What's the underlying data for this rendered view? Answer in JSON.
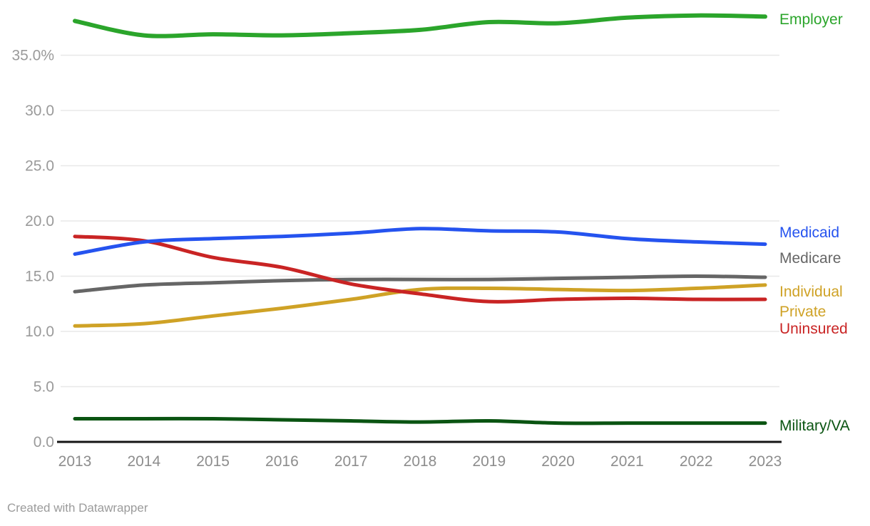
{
  "footer": {
    "credit": "Created with Datawrapper"
  },
  "chart_data": {
    "type": "line",
    "title": "",
    "xlabel": "",
    "ylabel": "",
    "x": [
      "2013",
      "2014",
      "2015",
      "2016",
      "2017",
      "2018",
      "2019",
      "2020",
      "2021",
      "2022",
      "2023"
    ],
    "ylim": [
      0,
      40
    ],
    "grid": true,
    "legend_position": "right-inline-labels",
    "axis_colors": {
      "grid": "#e8e8e8",
      "baseline": "#151515",
      "tick_text": "#9a9a9a"
    },
    "y_ticks": [
      {
        "value": 35,
        "label": "35.0%"
      },
      {
        "value": 30,
        "label": "30.0"
      },
      {
        "value": 25,
        "label": "25.0"
      },
      {
        "value": 20,
        "label": "20.0"
      },
      {
        "value": 15,
        "label": "15.0"
      },
      {
        "value": 10,
        "label": "10.0"
      },
      {
        "value": 5,
        "label": "5.0"
      },
      {
        "value": 0,
        "label": "0.0"
      }
    ],
    "series": [
      {
        "name": "Employer",
        "color": "#2ba52b",
        "label_lines": [
          "Employer"
        ],
        "values": [
          38.1,
          36.8,
          36.9,
          36.8,
          37.0,
          37.3,
          38.0,
          37.9,
          38.4,
          38.6,
          38.5
        ]
      },
      {
        "name": "Medicaid",
        "color": "#2553ef",
        "label_lines": [
          "Medicaid"
        ],
        "values": [
          17.0,
          18.1,
          18.4,
          18.6,
          18.9,
          19.3,
          19.1,
          19.0,
          18.4,
          18.1,
          17.9
        ]
      },
      {
        "name": "Medicare",
        "color": "#666666",
        "label_lines": [
          "Medicare"
        ],
        "values": [
          13.6,
          14.2,
          14.4,
          14.6,
          14.7,
          14.7,
          14.7,
          14.8,
          14.9,
          15.0,
          14.9
        ]
      },
      {
        "name": "Individual Private",
        "color": "#cfa226",
        "label_lines": [
          "Individual",
          "Private"
        ],
        "values": [
          10.5,
          10.7,
          11.4,
          12.1,
          12.9,
          13.8,
          13.9,
          13.8,
          13.7,
          13.9,
          14.2
        ]
      },
      {
        "name": "Uninsured",
        "color": "#c92424",
        "label_lines": [
          "Uninsured"
        ],
        "values": [
          18.6,
          18.2,
          16.7,
          15.8,
          14.3,
          13.4,
          12.7,
          12.9,
          13.0,
          12.9,
          12.9
        ]
      },
      {
        "name": "Military/VA",
        "color": "#0a5412",
        "label_lines": [
          "Military/VA"
        ],
        "values": [
          2.1,
          2.1,
          2.1,
          2.0,
          1.9,
          1.8,
          1.9,
          1.7,
          1.7,
          1.7,
          1.7
        ]
      }
    ]
  }
}
